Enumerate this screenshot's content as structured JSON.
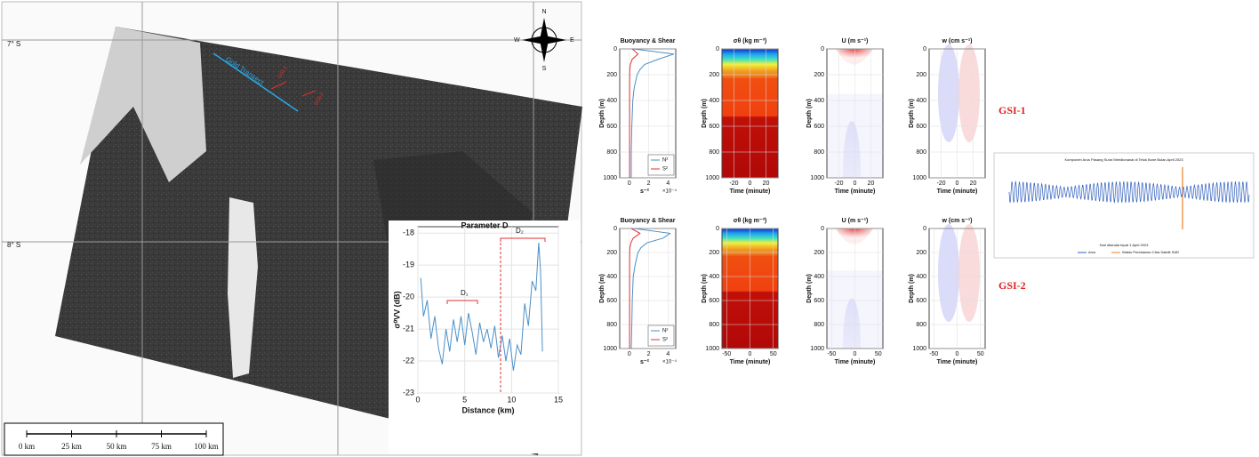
{
  "map": {
    "lat_labels": [
      "7° S",
      "8° S"
    ],
    "transect_label": "Gold Transect",
    "points": [
      "GSI-1",
      "GSI-2"
    ],
    "compass": [
      "N",
      "E",
      "S",
      "W"
    ],
    "scale_bar": [
      "0 km",
      "25 km",
      "50 km",
      "75 km",
      "100 km"
    ]
  },
  "inset": {
    "type": "line",
    "title": "Parameter D",
    "annotations": [
      "D₁",
      "D₂"
    ],
    "xlabel": "Distance (km)",
    "ylabel": "σ⁰VV (dB)",
    "color": "#4a90c8",
    "x": [
      0.3,
      0.6,
      1.0,
      1.4,
      1.8,
      2.2,
      2.6,
      3.0,
      3.4,
      3.8,
      4.2,
      4.6,
      5.0,
      5.4,
      5.8,
      6.2,
      6.6,
      7.0,
      7.4,
      7.8,
      8.2,
      8.6,
      9.0,
      9.4,
      9.8,
      10.2,
      10.6,
      11.0,
      11.4,
      11.8,
      12.2,
      12.6,
      12.9,
      13.1,
      13.3
    ],
    "values": [
      -19.4,
      -20.6,
      -20.1,
      -21.3,
      -20.6,
      -21.6,
      -22.1,
      -21.0,
      -21.7,
      -20.7,
      -21.4,
      -20.6,
      -21.5,
      -20.5,
      -21.1,
      -21.8,
      -20.8,
      -21.4,
      -21.0,
      -21.6,
      -20.9,
      -21.9,
      -21.2,
      -22.0,
      -21.3,
      -22.3,
      -21.5,
      -21.8,
      -20.2,
      -20.9,
      -19.5,
      -19.8,
      -18.3,
      -19.2,
      -21.7
    ],
    "xlim": [
      0,
      15
    ],
    "ylim": [
      -23,
      -17.8
    ],
    "xticks": [
      0,
      5,
      10,
      15
    ],
    "yticks": [
      -18,
      -19,
      -20,
      -21,
      -22,
      -23
    ],
    "grid": true
  },
  "panels": {
    "titles": [
      "Buoyancy & Shear",
      "σθ (kg m⁻³)",
      "U (m s⁻¹)",
      "w (cm s⁻¹)"
    ],
    "depth_label": "Depth (m)",
    "time_label": "Time (minute)",
    "buoyancy_unit": "s⁻²",
    "buoyancy_scale": "×10⁻⁴",
    "depth_lim": [
      0,
      1000
    ],
    "depth_ticks": [
      0,
      200,
      400,
      600,
      800,
      1000
    ],
    "legend": [
      {
        "name": "N²",
        "color": "#4a90c8"
      },
      {
        "name": "S²",
        "color": "#e03030"
      }
    ],
    "depth": [
      0,
      40,
      80,
      120,
      160,
      200,
      300,
      400,
      600,
      800,
      1000
    ],
    "rows": [
      {
        "label": "GSI-1",
        "buoyancy_lim": [
          -1,
          4.8
        ],
        "time_lim": [
          -35,
          35
        ],
        "buoyancy_ticks": [
          0,
          2,
          4
        ],
        "time_ticks": [
          -20,
          0,
          20
        ],
        "n2": [
          0.4,
          4.6,
          3.0,
          1.6,
          1.1,
          0.8,
          0.5,
          0.35,
          0.25,
          0.2,
          0.2
        ],
        "s2": [
          0.3,
          0.9,
          0.3,
          0.1,
          0.05,
          0.03,
          0.02,
          0.02,
          0.02,
          0.02,
          0.02
        ]
      },
      {
        "label": "GSI-2",
        "buoyancy_lim": [
          -1,
          4.8
        ],
        "time_lim": [
          -60,
          60
        ],
        "buoyancy_ticks": [
          0,
          2,
          4
        ],
        "time_ticks": [
          -50,
          0,
          50
        ],
        "n2": [
          0.5,
          4.2,
          3.5,
          1.8,
          1.2,
          0.9,
          0.6,
          0.4,
          0.3,
          0.25,
          0.2
        ],
        "s2": [
          0.2,
          1.1,
          0.4,
          0.15,
          0.05,
          0.03,
          0.02,
          0.02,
          0.02,
          0.02,
          0.02
        ]
      }
    ]
  },
  "side_chart": {
    "title": "Komponen Arus Pasang Surut Meridionanal di Teluk Bone Bulan April 2023",
    "xlabel": "Hari ditandai tepat 1 April 2023",
    "legend": [
      "Arus",
      "Waktu Perekaman Citra Satelit SAR"
    ]
  }
}
